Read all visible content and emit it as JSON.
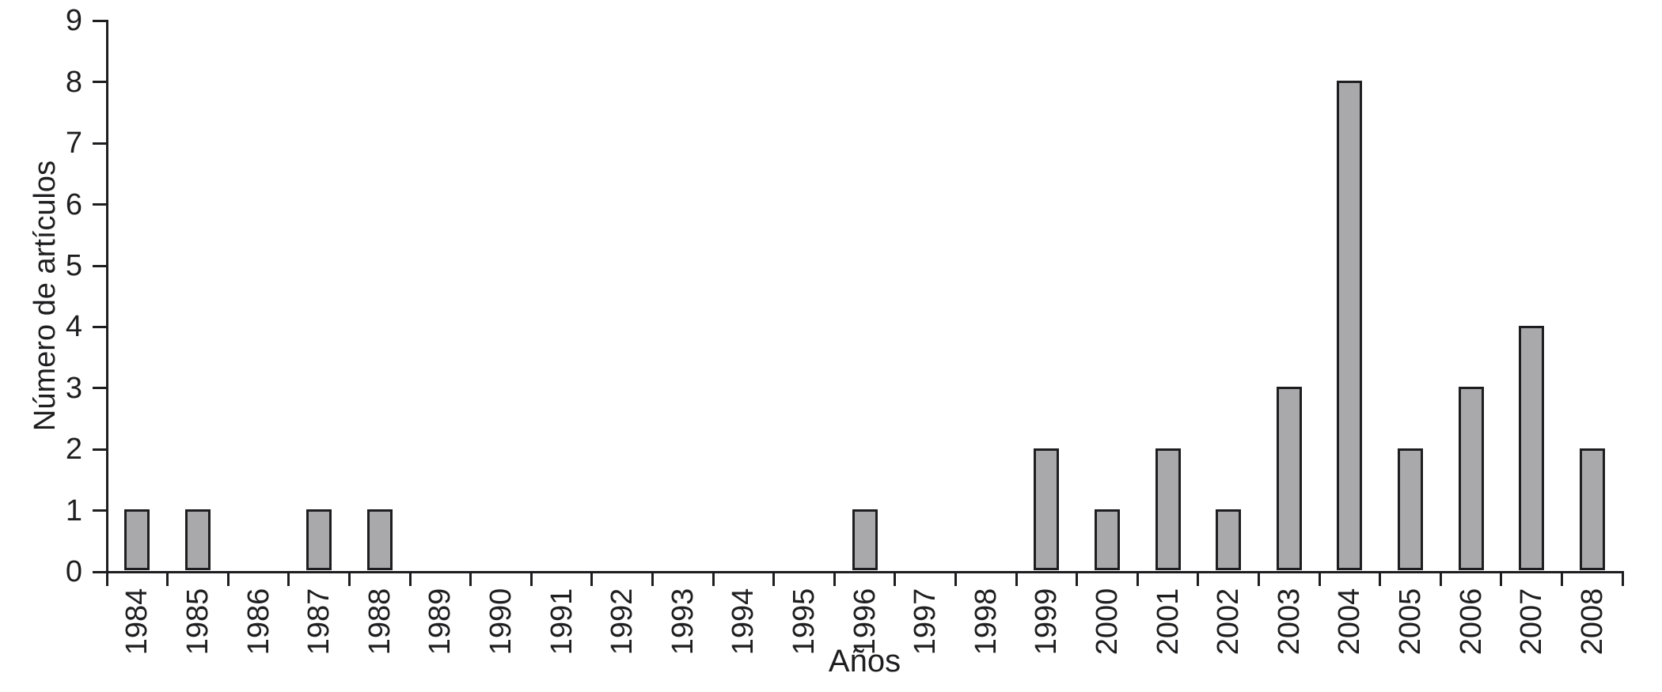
{
  "chart_data": {
    "type": "bar",
    "title": "",
    "xlabel": "Años",
    "ylabel": "Número de artículos",
    "categories": [
      "1984",
      "1985",
      "1986",
      "1987",
      "1988",
      "1989",
      "1990",
      "1991",
      "1992",
      "1993",
      "1994",
      "1995",
      "1996",
      "1997",
      "1998",
      "1999",
      "2000",
      "2001",
      "2002",
      "2003",
      "2004",
      "2005",
      "2006",
      "2007",
      "2008"
    ],
    "values": [
      1,
      1,
      0,
      1,
      1,
      0,
      0,
      0,
      0,
      0,
      0,
      0,
      1,
      0,
      0,
      2,
      1,
      2,
      1,
      3,
      8,
      2,
      3,
      4,
      2
    ],
    "yticks": [
      0,
      1,
      2,
      3,
      4,
      5,
      6,
      7,
      8,
      9
    ],
    "ylim": [
      0,
      9
    ],
    "grid": false,
    "legend_position": "none",
    "colors": {
      "bar_fill": "#a9a9ac",
      "bar_stroke": "#1e1e20",
      "axis": "#1e1e20",
      "text": "#1e1e20",
      "background": "#ffffff"
    }
  }
}
